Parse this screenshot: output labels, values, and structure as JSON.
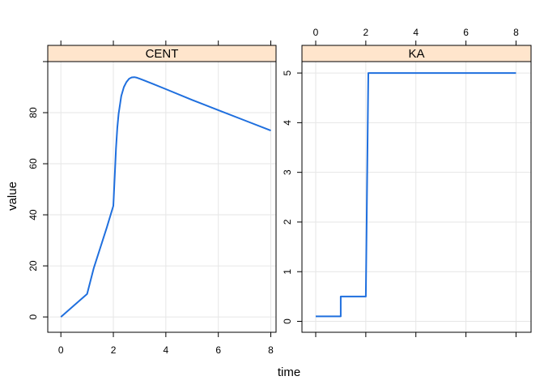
{
  "chart_data": {
    "type": "line",
    "layout": "lattice panels, side by side",
    "xlabel": "time",
    "ylabel": "value",
    "grid": true,
    "colors": {
      "series": "#1f6fde",
      "strip": "#ffe5cc",
      "grid": "#e6e6e6"
    },
    "panels": [
      {
        "strip": "CENT",
        "xlim": [
          -0.5,
          8.2
        ],
        "ylim": [
          -6,
          100
        ],
        "x_ticks": [
          0,
          2,
          4,
          6,
          8
        ],
        "x_ticks_position": "bottom",
        "y_ticks": [
          0,
          20,
          40,
          60,
          80
        ],
        "y_ticks_position": "left",
        "x": [
          0,
          1,
          1.25,
          1.5,
          1.75,
          2,
          2.05,
          2.1,
          2.15,
          2.2,
          2.3,
          2.4,
          2.5,
          2.6,
          2.7,
          2.8,
          2.9,
          3.0,
          3.2,
          3.5,
          4,
          5,
          6,
          7,
          8
        ],
        "y": [
          0,
          9,
          19,
          27,
          35,
          43.5,
          55,
          66,
          74,
          79.5,
          86.5,
          90,
          92,
          93.3,
          93.8,
          93.9,
          93.7,
          93.3,
          92.5,
          91.3,
          89.2,
          85,
          81,
          77,
          73
        ]
      },
      {
        "strip": "KA",
        "xlim": [
          -0.55,
          8.6
        ],
        "ylim": [
          -0.22,
          5.23
        ],
        "x_ticks": [
          0,
          2,
          4,
          6,
          8
        ],
        "x_ticks_position": "top",
        "y_ticks": [
          0,
          1,
          2,
          3,
          4,
          5
        ],
        "y_ticks_position": "left",
        "x": [
          0,
          1,
          1,
          2,
          2.1,
          8
        ],
        "y": [
          0.1,
          0.1,
          0.5,
          0.5,
          5,
          5
        ]
      }
    ]
  }
}
